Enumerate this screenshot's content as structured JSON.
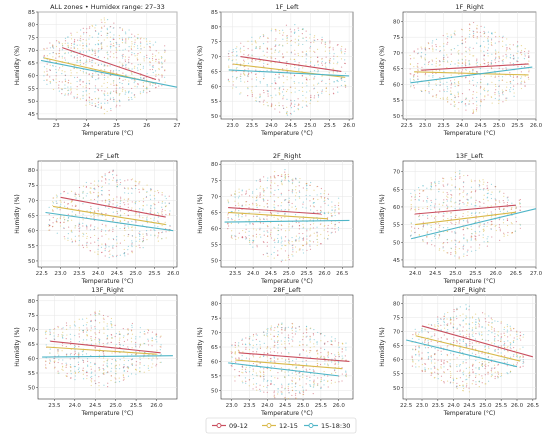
{
  "chart_data": {
    "type": "scatter",
    "xlabel": "Temperature (°C)",
    "ylabel": "Humidity (%)",
    "grid": true,
    "legend": {
      "placement": "bottom-center",
      "entries": [
        {
          "label": "09-12",
          "color": "#c94f5f"
        },
        {
          "label": "12-15",
          "color": "#d9b94a"
        },
        {
          "label": "15-18:30",
          "color": "#4fb5c7"
        }
      ]
    },
    "panels": [
      {
        "title": "ALL zones • Humidex range: 27–33",
        "xlim": [
          22.4,
          27.0
        ],
        "ylim": [
          43,
          85
        ],
        "xticks": [
          "23",
          "24",
          "25",
          "26",
          "27"
        ],
        "xtick_values": [
          23,
          24,
          25,
          26,
          27
        ],
        "yticks": [
          "45",
          "50",
          "55",
          "60",
          "65",
          "70",
          "75",
          "80",
          "85"
        ],
        "ytick_values": [
          45,
          50,
          55,
          60,
          65,
          70,
          75,
          80,
          85
        ],
        "cloud": {
          "x": [
            22.6,
            26.6
          ],
          "center_x": 24.6,
          "center_y": 64,
          "spread_y": 19
        },
        "series": [
          {
            "name": "09-12",
            "x": [
              23.2,
              26.3
            ],
            "y": [
              71,
              58.5
            ]
          },
          {
            "name": "12-15",
            "x": [
              22.6,
              26.3
            ],
            "y": [
              67,
              57
            ]
          },
          {
            "name": "15-18:30",
            "x": [
              22.5,
              27.0
            ],
            "y": [
              66,
              55.5
            ]
          }
        ]
      },
      {
        "title": "1F_Left",
        "xlim": [
          22.7,
          26.1
        ],
        "ylim": [
          49,
          85
        ],
        "xticks": [
          "23.0",
          "23.5",
          "24.0",
          "24.5",
          "25.0",
          "25.5",
          "26.0"
        ],
        "xtick_values": [
          23.0,
          23.5,
          24.0,
          24.5,
          25.0,
          25.5,
          26.0
        ],
        "yticks": [
          "50",
          "55",
          "60",
          "65",
          "70",
          "75",
          "80",
          "85"
        ],
        "ytick_values": [
          50,
          55,
          60,
          65,
          70,
          75,
          80,
          85
        ],
        "cloud": {
          "x": [
            22.9,
            25.9
          ],
          "center_x": 24.4,
          "center_y": 66,
          "spread_y": 16
        },
        "series": [
          {
            "name": "09-12",
            "x": [
              23.2,
              25.8
            ],
            "y": [
              70,
              65
            ]
          },
          {
            "name": "12-15",
            "x": [
              23.0,
              25.9
            ],
            "y": [
              67.5,
              63
            ]
          },
          {
            "name": "15-18:30",
            "x": [
              22.9,
              26.0
            ],
            "y": [
              65.5,
              63.5
            ]
          }
        ]
      },
      {
        "title": "1F_Right",
        "xlim": [
          22.4,
          26.0
        ],
        "ylim": [
          49,
          83
        ],
        "xticks": [
          "22.5",
          "23.0",
          "23.5",
          "24.0",
          "24.5",
          "25.0",
          "25.5",
          "26.0"
        ],
        "xtick_values": [
          22.5,
          23.0,
          23.5,
          24.0,
          24.5,
          25.0,
          25.5,
          26.0
        ],
        "yticks": [
          "50",
          "55",
          "60",
          "65",
          "70",
          "75",
          "80"
        ],
        "ytick_values": [
          50,
          55,
          60,
          65,
          70,
          75,
          80
        ],
        "cloud": {
          "x": [
            22.6,
            25.8
          ],
          "center_x": 24.3,
          "center_y": 65,
          "spread_y": 15
        },
        "series": [
          {
            "name": "09-12",
            "x": [
              22.9,
              25.8
            ],
            "y": [
              64.5,
              66.5
            ]
          },
          {
            "name": "12-15",
            "x": [
              22.7,
              25.8
            ],
            "y": [
              64,
              63
            ]
          },
          {
            "name": "15-18:30",
            "x": [
              22.6,
              25.9
            ],
            "y": [
              60.5,
              65.5
            ]
          }
        ]
      },
      {
        "title": "2F_Left",
        "xlim": [
          22.4,
          26.1
        ],
        "ylim": [
          48,
          83
        ],
        "xticks": [
          "22.5",
          "23.0",
          "23.5",
          "24.0",
          "24.5",
          "25.0",
          "25.5",
          "26.0"
        ],
        "xtick_values": [
          22.5,
          23.0,
          23.5,
          24.0,
          24.5,
          25.0,
          25.5,
          26.0
        ],
        "yticks": [
          "50",
          "55",
          "60",
          "65",
          "70",
          "75",
          "80"
        ],
        "ytick_values": [
          50,
          55,
          60,
          65,
          70,
          75,
          80
        ],
        "cloud": {
          "x": [
            22.7,
            25.9
          ],
          "center_x": 24.4,
          "center_y": 65,
          "spread_y": 15
        },
        "series": [
          {
            "name": "09-12",
            "x": [
              23.0,
              25.8
            ],
            "y": [
              71,
              64.5
            ]
          },
          {
            "name": "12-15",
            "x": [
              22.8,
              25.8
            ],
            "y": [
              68,
              62
            ]
          },
          {
            "name": "15-18:30",
            "x": [
              22.6,
              26.0
            ],
            "y": [
              66,
              60
            ]
          }
        ]
      },
      {
        "title": "2F_Right",
        "xlim": [
          23.1,
          26.8
        ],
        "ylim": [
          48,
          81
        ],
        "xticks": [
          "23.5",
          "24.0",
          "24.5",
          "25.0",
          "25.5",
          "26.0",
          "26.5"
        ],
        "xtick_values": [
          23.5,
          24.0,
          24.5,
          25.0,
          25.5,
          26.0,
          26.5
        ],
        "yticks": [
          "50",
          "55",
          "60",
          "65",
          "70",
          "75",
          "80"
        ],
        "ytick_values": [
          50,
          55,
          60,
          65,
          70,
          75,
          80
        ],
        "cloud": {
          "x": [
            23.3,
            26.4
          ],
          "center_x": 24.8,
          "center_y": 64,
          "spread_y": 15
        },
        "series": [
          {
            "name": "09-12",
            "x": [
              23.3,
              25.9
            ],
            "y": [
              66.5,
              64.5
            ]
          },
          {
            "name": "12-15",
            "x": [
              23.3,
              26.1
            ],
            "y": [
              65,
              63
            ]
          },
          {
            "name": "15-18:30",
            "x": [
              23.2,
              26.7
            ],
            "y": [
              62,
              62.5
            ]
          }
        ]
      },
      {
        "title": "13F_Left",
        "xlim": [
          23.7,
          27.0
        ],
        "ylim": [
          43,
          73
        ],
        "xticks": [
          "24.0",
          "24.5",
          "25.0",
          "25.5",
          "26.0",
          "26.5",
          "27.0"
        ],
        "xtick_values": [
          24.0,
          24.5,
          25.0,
          25.5,
          26.0,
          26.5,
          27.0
        ],
        "yticks": [
          "45",
          "50",
          "55",
          "60",
          "65",
          "70"
        ],
        "ytick_values": [
          45,
          50,
          55,
          60,
          65,
          70
        ],
        "cloud": {
          "x": [
            23.9,
            26.6
          ],
          "center_x": 25.1,
          "center_y": 58,
          "spread_y": 13
        },
        "series": [
          {
            "name": "09-12",
            "x": [
              24.0,
              26.5
            ],
            "y": [
              58,
              60.5
            ]
          },
          {
            "name": "12-15",
            "x": [
              24.0,
              26.5
            ],
            "y": [
              55,
              58.5
            ]
          },
          {
            "name": "15-18:30",
            "x": [
              23.9,
              27.0
            ],
            "y": [
              51,
              59.5
            ]
          }
        ]
      },
      {
        "title": "13F_Right",
        "xlim": [
          23.1,
          26.5
        ],
        "ylim": [
          46,
          82
        ],
        "xticks": [
          "23.5",
          "24.0",
          "24.5",
          "25.0",
          "25.5",
          "26.0"
        ],
        "xtick_values": [
          23.5,
          24.0,
          24.5,
          25.0,
          25.5,
          26.0
        ],
        "yticks": [
          "50",
          "55",
          "60",
          "65",
          "70",
          "75",
          "80"
        ],
        "ytick_values": [
          50,
          55,
          60,
          65,
          70,
          75,
          80
        ],
        "cloud": {
          "x": [
            23.3,
            26.1
          ],
          "center_x": 24.6,
          "center_y": 63,
          "spread_y": 14
        },
        "series": [
          {
            "name": "09-12",
            "x": [
              23.4,
              26.1
            ],
            "y": [
              66,
              62
            ]
          },
          {
            "name": "12-15",
            "x": [
              23.3,
              26.0
            ],
            "y": [
              64,
              61.5
            ]
          },
          {
            "name": "15-18:30",
            "x": [
              23.2,
              26.4
            ],
            "y": [
              60.5,
              61
            ]
          }
        ]
      },
      {
        "title": "28F_Left",
        "xlim": [
          22.7,
          26.4
        ],
        "ylim": [
          47,
          83
        ],
        "xticks": [
          "23.0",
          "23.5",
          "24.0",
          "24.5",
          "25.0",
          "25.5",
          "26.0"
        ],
        "xtick_values": [
          23.0,
          23.5,
          24.0,
          24.5,
          25.0,
          25.5,
          26.0
        ],
        "yticks": [
          "50",
          "55",
          "60",
          "65",
          "70",
          "75",
          "80"
        ],
        "ytick_values": [
          50,
          55,
          60,
          65,
          70,
          75,
          80
        ],
        "cloud": {
          "x": [
            23.0,
            26.2
          ],
          "center_x": 24.6,
          "center_y": 60,
          "spread_y": 15
        },
        "series": [
          {
            "name": "09-12",
            "x": [
              23.2,
              26.3
            ],
            "y": [
              63,
              60
            ]
          },
          {
            "name": "12-15",
            "x": [
              23.1,
              26.1
            ],
            "y": [
              60.5,
              57.5
            ]
          },
          {
            "name": "15-18:30",
            "x": [
              22.9,
              26.0
            ],
            "y": [
              59.5,
              55
            ]
          }
        ]
      },
      {
        "title": "28F_Right",
        "xlim": [
          22.4,
          26.6
        ],
        "ylim": [
          46,
          83
        ],
        "xticks": [
          "22.5",
          "23.0",
          "23.5",
          "24.0",
          "24.5",
          "25.0",
          "25.5",
          "26.0",
          "26.5"
        ],
        "xtick_values": [
          22.5,
          23.0,
          23.5,
          24.0,
          24.5,
          25.0,
          25.5,
          26.0,
          26.5
        ],
        "yticks": [
          "50",
          "55",
          "60",
          "65",
          "70",
          "75",
          "80"
        ],
        "ytick_values": [
          50,
          55,
          60,
          65,
          70,
          75,
          80
        ],
        "cloud": {
          "x": [
            22.7,
            26.2
          ],
          "center_x": 24.4,
          "center_y": 64,
          "spread_y": 16
        },
        "series": [
          {
            "name": "09-12",
            "x": [
              23.0,
              26.5
            ],
            "y": [
              72,
              61
            ]
          },
          {
            "name": "12-15",
            "x": [
              22.8,
              26.1
            ],
            "y": [
              68.5,
              59.5
            ]
          },
          {
            "name": "15-18:30",
            "x": [
              22.5,
              26.0
            ],
            "y": [
              67,
              57.5
            ]
          }
        ]
      }
    ]
  }
}
